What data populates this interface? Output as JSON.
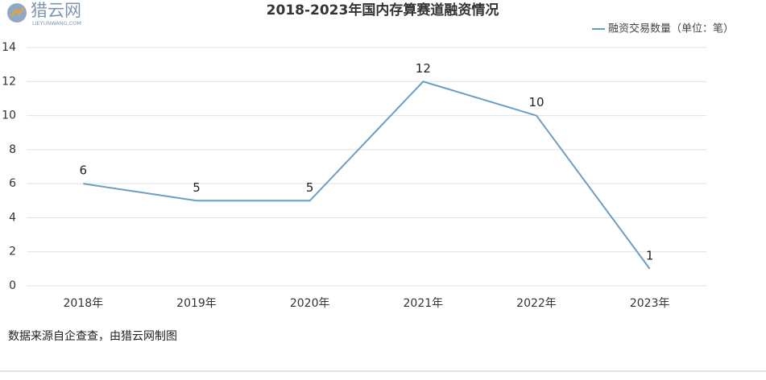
{
  "logo": {
    "name": "猎云网",
    "domain": "LIEYUNWANG.COM"
  },
  "chart_data": {
    "type": "line",
    "title": "2018-2023年国内存算赛道融资情况",
    "categories": [
      "2018年",
      "2019年",
      "2020年",
      "2021年",
      "2022年",
      "2023年"
    ],
    "series": [
      {
        "name": "融资交易数量（单位：笔）",
        "color": "#6a9ec2",
        "values": [
          6,
          5,
          5,
          12,
          10,
          1
        ]
      }
    ],
    "ylim": [
      0,
      14
    ],
    "yticks": [
      0,
      2,
      4,
      6,
      8,
      10,
      12,
      14
    ],
    "grid": true,
    "legend": "top-right"
  },
  "source": "数据来源自企查查，由猎云网制图"
}
